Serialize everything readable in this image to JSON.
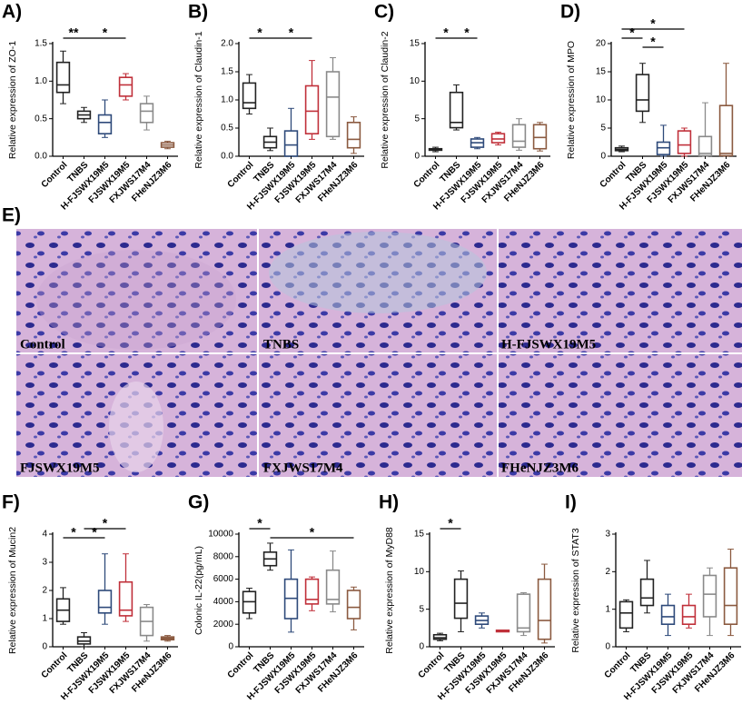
{
  "chart_data": [
    {
      "type": "box",
      "panel": "A)",
      "ylabel": "Relative expression of ZO-1",
      "ylim": [
        0,
        1.5
      ],
      "yticks": [
        {
          "value": 0,
          "label": "0.0"
        },
        {
          "value": 0.5,
          "label": "0.5"
        },
        {
          "value": 1,
          "label": "1.0"
        },
        {
          "value": 1.5,
          "label": "1.5"
        }
      ],
      "categories": [
        "Control",
        "TNBS",
        "H-FJSWX19M5",
        "FJSWX19M5",
        "FXJWS17M4",
        "FHeNJZ3M6"
      ],
      "colors": [
        "#222222",
        "#222222",
        "#2e4a7a",
        "#c0303a",
        "#8a8a8a",
        "#8b5a40"
      ],
      "stats": [
        [
          0.7,
          0.85,
          0.95,
          1.25,
          1.4
        ],
        [
          0.45,
          0.5,
          0.55,
          0.6,
          0.65
        ],
        [
          0.25,
          0.3,
          0.45,
          0.55,
          0.75
        ],
        [
          0.75,
          0.8,
          0.95,
          1.05,
          1.1
        ],
        [
          0.35,
          0.45,
          0.6,
          0.7,
          0.8
        ],
        [
          0.1,
          0.12,
          0.15,
          0.18,
          0.2
        ]
      ],
      "annotations": [
        "**",
        "*"
      ]
    },
    {
      "type": "box",
      "panel": "B)",
      "ylabel": "Relative expression of Claudin-1",
      "ylim": [
        0,
        2
      ],
      "yticks": [
        {
          "value": 0,
          "label": "0.0"
        },
        {
          "value": 0.5,
          "label": "0.5"
        },
        {
          "value": 1,
          "label": "1.0"
        },
        {
          "value": 1.5,
          "label": "1.5"
        },
        {
          "value": 2,
          "label": "2.0"
        }
      ],
      "categories": [
        "Control",
        "TNBS",
        "H-FJSWX19M5",
        "FJSWX19M5",
        "FXJWS17M4",
        "FHeNJZ3M6"
      ],
      "colors": [
        "#222222",
        "#222222",
        "#2e4a7a",
        "#c0303a",
        "#8a8a8a",
        "#8b5a40"
      ],
      "stats": [
        [
          0.75,
          0.85,
          0.95,
          1.3,
          1.45
        ],
        [
          0.1,
          0.15,
          0.25,
          0.35,
          0.5
        ],
        [
          0,
          0,
          0.2,
          0.45,
          0.85
        ],
        [
          0.3,
          0.4,
          0.8,
          1.25,
          1.7
        ],
        [
          0.3,
          0.35,
          1.05,
          1.5,
          1.75
        ],
        [
          0.05,
          0.15,
          0.3,
          0.6,
          0.7
        ]
      ],
      "annotations": [
        "*",
        "*"
      ]
    },
    {
      "type": "box",
      "panel": "C)",
      "ylabel": "Relative expression of Claudin-2",
      "ylim": [
        0,
        15
      ],
      "yticks": [
        0,
        5,
        10,
        15
      ],
      "categories": [
        "Control",
        "TNBS",
        "H-FJSWX19M5",
        "FJSWX19M5",
        "FXJWS17M4",
        "FHeNJZ3M6"
      ],
      "colors": [
        "#222222",
        "#222222",
        "#2e4a7a",
        "#c0303a",
        "#8a8a8a",
        "#8b5a40"
      ],
      "stats": [
        [
          0.6,
          0.8,
          0.9,
          1,
          1.2
        ],
        [
          3.5,
          3.8,
          4.5,
          8.5,
          9.5
        ],
        [
          1,
          1.2,
          1.8,
          2.3,
          2.5
        ],
        [
          1.5,
          1.8,
          2.3,
          3,
          3.2
        ],
        [
          0.8,
          1.2,
          2,
          4.2,
          5
        ],
        [
          0.7,
          1,
          2.5,
          4.2,
          4.5
        ]
      ],
      "annotations": [
        "*",
        "*"
      ]
    },
    {
      "type": "box",
      "panel": "D)",
      "ylabel": "Relative expression of MPO",
      "ylim": [
        0,
        20
      ],
      "yticks": [
        0,
        5,
        10,
        15,
        20
      ],
      "categories": [
        "Control",
        "TNBS",
        "H-FJSWX19M5",
        "FJSWX19M5",
        "FXJWS17M4",
        "FHeNJZ3M6"
      ],
      "colors": [
        "#222222",
        "#222222",
        "#2e4a7a",
        "#c0303a",
        "#8a8a8a",
        "#8b5a40"
      ],
      "stats": [
        [
          0.8,
          1,
          1.2,
          1.5,
          1.8
        ],
        [
          6,
          8,
          10,
          14.5,
          16.5
        ],
        [
          0,
          0.3,
          1.5,
          2.5,
          5.5
        ],
        [
          0,
          0.5,
          2,
          4.5,
          5
        ],
        [
          0,
          0.1,
          0.5,
          3.5,
          9.5
        ],
        [
          0,
          0.1,
          0.5,
          9,
          16.5
        ]
      ],
      "annotations": [
        "*",
        "*",
        "*"
      ]
    },
    {
      "type": "box",
      "panel": "F)",
      "ylabel": "Relative expression of Mucin2",
      "ylim": [
        0,
        4
      ],
      "yticks": [
        0,
        1,
        2,
        3,
        4
      ],
      "categories": [
        "Control",
        "TNBS",
        "H-FJSWX19M5",
        "FJSWX19M5",
        "FXJWS17M4",
        "FHeNJZ3M6"
      ],
      "colors": [
        "#222222",
        "#222222",
        "#2e4a7a",
        "#c0303a",
        "#8a8a8a",
        "#8b5a40"
      ],
      "stats": [
        [
          0.8,
          0.9,
          1.3,
          1.7,
          2.1
        ],
        [
          0,
          0.1,
          0.2,
          0.35,
          0.5
        ],
        [
          0.8,
          1.2,
          1.4,
          2,
          3.3
        ],
        [
          0.9,
          1.1,
          1.3,
          2.3,
          3.3
        ],
        [
          0.2,
          0.4,
          0.9,
          1.4,
          1.5
        ],
        [
          0.2,
          0.25,
          0.3,
          0.35,
          0.4
        ]
      ],
      "annotations": [
        "*",
        "*",
        "*"
      ]
    },
    {
      "type": "box",
      "panel": "G)",
      "ylabel": "Colonic IL-22(pg/mL)",
      "ylim": [
        0,
        10000
      ],
      "yticks": [
        0,
        2000,
        4000,
        6000,
        8000,
        10000
      ],
      "categories": [
        "Control",
        "TNBS",
        "H-FJSWX19M5",
        "FJSWX19M5",
        "FXJWS17M4",
        "FHeNJZ3M6"
      ],
      "colors": [
        "#222222",
        "#222222",
        "#2e4a7a",
        "#c0303a",
        "#8a8a8a",
        "#8b5a40"
      ],
      "stats": [
        [
          2500,
          3000,
          4000,
          4900,
          5200
        ],
        [
          6800,
          7200,
          7800,
          8400,
          9200
        ],
        [
          1300,
          2500,
          4300,
          6000,
          8600
        ],
        [
          3200,
          3800,
          4200,
          6000,
          6200
        ],
        [
          3100,
          3800,
          4200,
          6800,
          8500
        ],
        [
          1500,
          2500,
          3500,
          5000,
          5300
        ]
      ],
      "annotations": [
        "*",
        "*"
      ]
    },
    {
      "type": "box",
      "panel": "H)",
      "ylabel": "Relative expression of MyD88",
      "ylim": [
        0,
        15
      ],
      "yticks": [
        0,
        5,
        10,
        15
      ],
      "categories": [
        "Control",
        "TNBS",
        "H-FJSWX19M5",
        "FJSWX19M5",
        "FXJWS17M4",
        "FHeNJZ3M6"
      ],
      "colors": [
        "#222222",
        "#222222",
        "#2e4a7a",
        "#c0303a",
        "#8a8a8a",
        "#8b5a40"
      ],
      "stats": [
        [
          0.8,
          1,
          1.2,
          1.6,
          1.8
        ],
        [
          2,
          3.8,
          5.8,
          9,
          10.1
        ],
        [
          2.5,
          3,
          3.5,
          4.1,
          4.5
        ],
        [
          2,
          2,
          2.1,
          2.2,
          2.2
        ],
        [
          1.5,
          2,
          2.5,
          7,
          7.2
        ],
        [
          0.5,
          1,
          3.5,
          9,
          11
        ]
      ],
      "annotations": [
        "*"
      ]
    },
    {
      "type": "box",
      "panel": "I)",
      "ylabel": "Relative expression of STAT3",
      "ylim": [
        0,
        3
      ],
      "yticks": [
        0,
        1,
        2,
        3
      ],
      "categories": [
        "Control",
        "TNBS",
        "H-FJSWX19M5",
        "FJSWX19M5",
        "FXJWS17M4",
        "FHeNJZ3M6"
      ],
      "colors": [
        "#222222",
        "#222222",
        "#2e4a7a",
        "#c0303a",
        "#8a8a8a",
        "#8b5a40"
      ],
      "stats": [
        [
          0.4,
          0.5,
          0.9,
          1.2,
          1.25
        ],
        [
          0.9,
          1.1,
          1.3,
          1.8,
          2.3
        ],
        [
          0.3,
          0.6,
          0.8,
          1.1,
          1.4
        ],
        [
          0.5,
          0.6,
          0.8,
          1.1,
          1.4
        ],
        [
          0.3,
          0.8,
          1.4,
          1.9,
          2.1
        ],
        [
          0.3,
          0.6,
          1.1,
          2.1,
          2.6
        ]
      ],
      "annotations": []
    }
  ],
  "histology": {
    "panel": "E)",
    "labels": [
      "Control",
      "TNBS",
      "H-FJSWX19M5",
      "FJSWX19M5",
      "FXJWS17M4",
      "FHeNJZ3M6"
    ]
  }
}
